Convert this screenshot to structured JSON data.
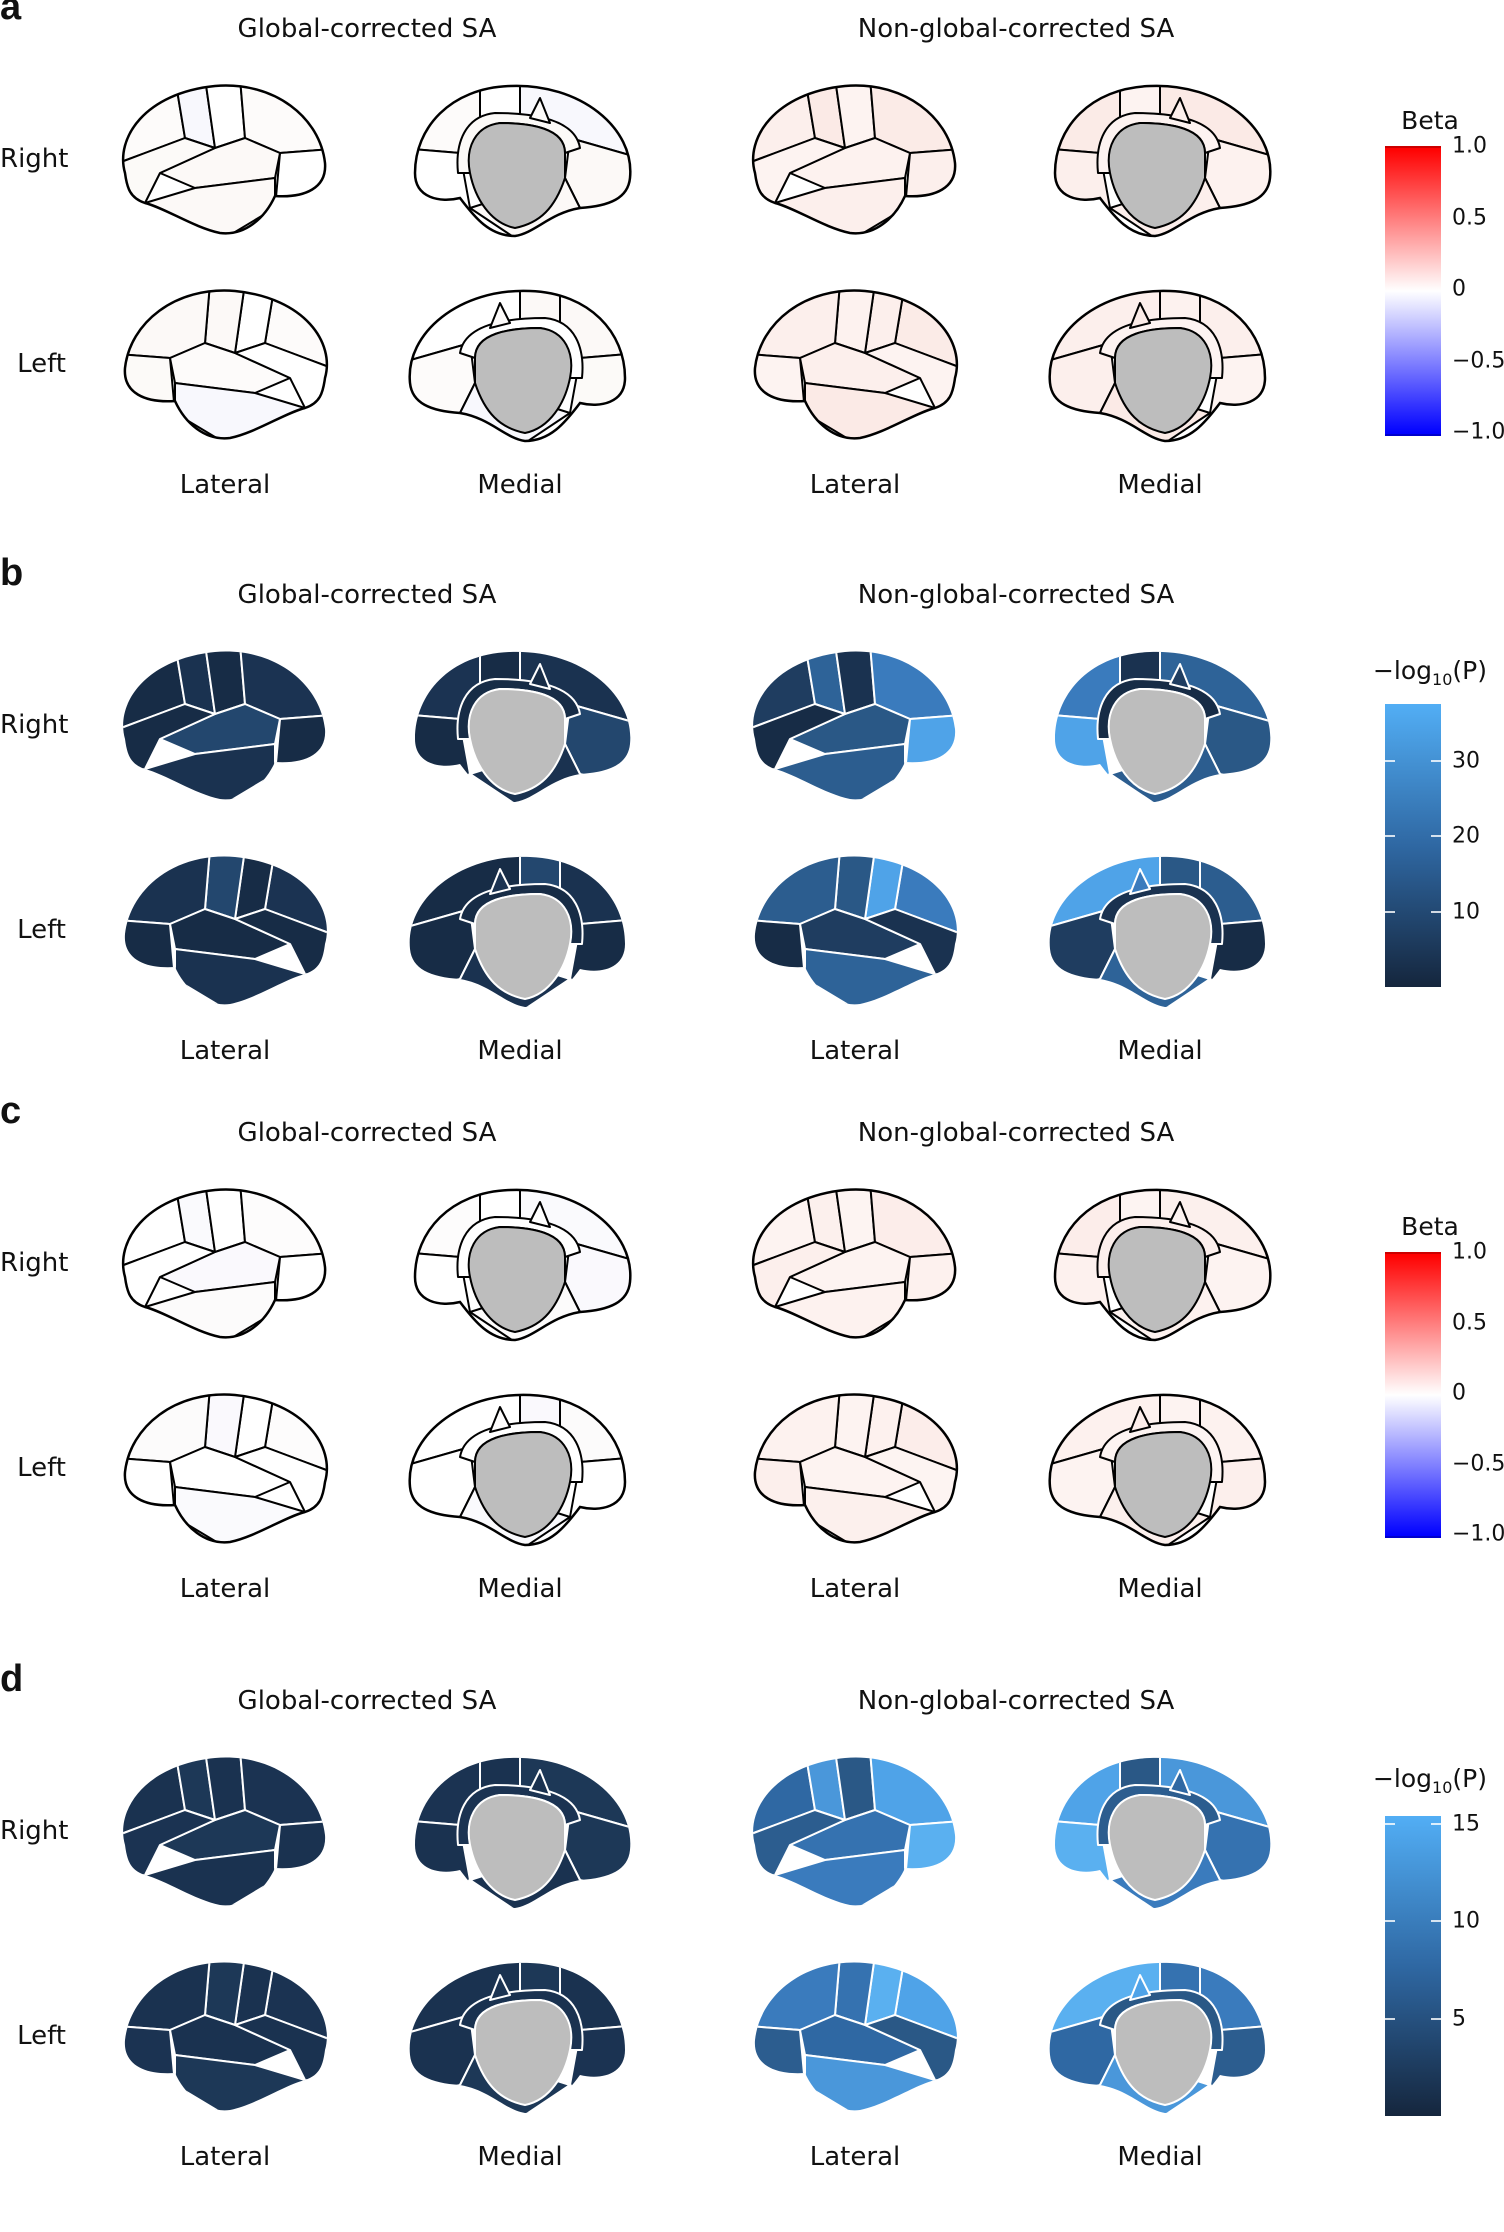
{
  "panels": [
    {
      "label": "a",
      "titles": [
        "Global-corrected SA",
        "Non-global-corrected SA"
      ],
      "rows": [
        "Right",
        "Left"
      ],
      "views": [
        "Lateral",
        "Medial",
        "Lateral",
        "Medial"
      ],
      "colorbar": {
        "type": "diverging",
        "title": "Beta",
        "range": [
          -1.0,
          1.0
        ],
        "colors": [
          "#0000ff",
          "#ffffff",
          "#ff0000"
        ],
        "ticks": [
          {
            "value": 1.0,
            "label": "1.0"
          },
          {
            "value": 0.5,
            "label": "0.5"
          },
          {
            "value": 0,
            "label": "0"
          },
          {
            "value": -0.5,
            "label": "−0.5"
          },
          {
            "value": -1.0,
            "label": "−1.0"
          }
        ]
      },
      "style": {
        "stroke": "#000000",
        "center": "#bdbdbd"
      },
      "fills": {
        "global": [
          "#fdfbfa",
          "#f8f8fd",
          "#ffffff",
          "#fdfbfa",
          "#ffffff",
          "#fcf9f7",
          "#fcf9f7",
          "#fcfaf8"
        ],
        "nonglobal": [
          "#fcefec",
          "#fdf3f1",
          "#fcefec",
          "#fbeae6",
          "#fdf3f1",
          "#fbebe7",
          "#fcefec",
          "#fdf2ef"
        ]
      }
    },
    {
      "label": "b",
      "titles": [
        "Global-corrected SA",
        "Non-global-corrected SA"
      ],
      "rows": [
        "Right",
        "Left"
      ],
      "views": [
        "Lateral",
        "Medial",
        "Lateral",
        "Medial"
      ],
      "colorbar": {
        "type": "sequential",
        "title_parts": [
          "−log",
          "10",
          "(P)"
        ],
        "range": [
          0,
          37.6
        ],
        "colors": [
          "#15263d",
          "#2f68a3",
          "#52aef5"
        ],
        "ticks": [
          {
            "value": 30,
            "label": "30"
          },
          {
            "value": 20,
            "label": "20"
          },
          {
            "value": 10,
            "label": "10"
          }
        ]
      },
      "style": {
        "stroke": "#ffffff",
        "center": "#bdbdbd"
      },
      "fills": {
        "global": [
          "#172c46",
          "#1a3250",
          "#172c46",
          "#1b3352",
          "#172c46",
          "#23476e",
          "#1a3250",
          "#172c46"
        ],
        "nonglobal": [
          "#2c5d8f",
          "#172c46",
          "#1f3d60",
          "#2e6398",
          "#1a3250",
          "#3a7bbd",
          "#4fa3e8",
          "#2a5886"
        ]
      }
    },
    {
      "label": "c",
      "titles": [
        "Global-corrected SA",
        "Non-global-corrected SA"
      ],
      "rows": [
        "Right",
        "Left"
      ],
      "views": [
        "Lateral",
        "Medial",
        "Lateral",
        "Medial"
      ],
      "colorbar": {
        "type": "diverging",
        "title": "Beta",
        "range": [
          -1.0,
          1.0
        ],
        "colors": [
          "#0000ff",
          "#ffffff",
          "#ff0000"
        ],
        "ticks": [
          {
            "value": 1.0,
            "label": "1.0"
          },
          {
            "value": 0.5,
            "label": "0.5"
          },
          {
            "value": 0,
            "label": "0"
          },
          {
            "value": -0.5,
            "label": "−0.5"
          },
          {
            "value": -1.0,
            "label": "−1.0"
          }
        ]
      },
      "style": {
        "stroke": "#000000",
        "center": "#bdbdbd"
      },
      "fills": {
        "global": [
          "#ffffff",
          "#fafafd",
          "#ffffff",
          "#fdfcfc",
          "#ffffff",
          "#faf9fd",
          "#fcfbfb",
          "#ffffff"
        ],
        "nonglobal": [
          "#fdf2ef",
          "#fcefec",
          "#fdf3f1",
          "#fcf0ed",
          "#fdf4f2",
          "#fcedea",
          "#fdf1ee",
          "#fdf3f1"
        ]
      }
    },
    {
      "label": "d",
      "titles": [
        "Global-corrected SA",
        "Non-global-corrected SA"
      ],
      "rows": [
        "Right",
        "Left"
      ],
      "views": [
        "Lateral",
        "Medial",
        "Lateral",
        "Medial"
      ],
      "colorbar": {
        "type": "sequential",
        "title_parts": [
          "−log",
          "10",
          "(P)"
        ],
        "range": [
          0,
          15.4
        ],
        "colors": [
          "#15263d",
          "#2f68a3",
          "#52aef5"
        ],
        "ticks": [
          {
            "value": 15,
            "label": "15"
          },
          {
            "value": 10,
            "label": "10"
          },
          {
            "value": 5,
            "label": "5"
          }
        ]
      },
      "style": {
        "stroke": "#ffffff",
        "center": "#bdbdbd"
      },
      "fills": {
        "global": [
          "#1a3250",
          "#1d3857",
          "#1a3250",
          "#1b3352",
          "#1a3250",
          "#1d3857",
          "#1a3250",
          "#1b3352"
        ],
        "nonglobal": [
          "#3a7bbd",
          "#2c5d8f",
          "#2f68a3",
          "#4a97da",
          "#2a5886",
          "#4fa3e8",
          "#5ab0f0",
          "#3572b0"
        ]
      }
    }
  ]
}
